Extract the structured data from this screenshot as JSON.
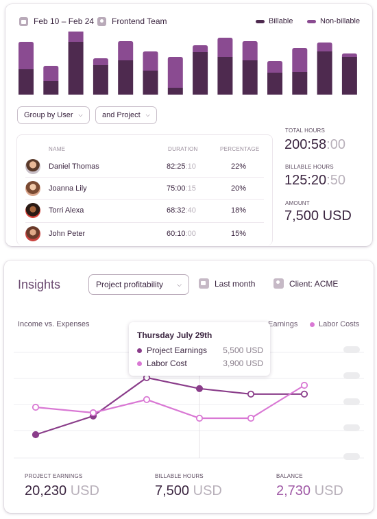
{
  "timesheet": {
    "date_range": "Feb 10 – Feb 24",
    "team": "Frontend Team",
    "legend": [
      {
        "label": "Billable",
        "color": "#4e2a4f"
      },
      {
        "label": "Non-billable",
        "color": "#8a4b91"
      }
    ],
    "group_by": "Group by User",
    "and_by": "and Project",
    "table_headers": {
      "name": "NAME",
      "duration": "DURATION",
      "percentage": "PERCENTAGE"
    },
    "rows": [
      {
        "name": "Daniel Thomas",
        "dur_main": "82:25",
        "dur_sec": ":10",
        "pct": "22%"
      },
      {
        "name": "Joanna Lily",
        "dur_main": "75:00",
        "dur_sec": ":15",
        "pct": "20%"
      },
      {
        "name": "Torri Alexa",
        "dur_main": "68:32",
        "dur_sec": ":40",
        "pct": "18%"
      },
      {
        "name": "John Peter",
        "dur_main": "60:10",
        "dur_sec": ":00",
        "pct": "15%"
      }
    ],
    "stats": {
      "total_label": "TOTAL HOURS",
      "total_main": "200:58",
      "total_sec": ":00",
      "billable_label": "BILLABLE HOURS",
      "billable_main": "125:20",
      "billable_sec": ":50",
      "amount_label": "AMOUNT",
      "amount_value": "7,500 USD"
    }
  },
  "insights": {
    "title": "Insights",
    "report_select": "Project profitability",
    "period": "Last month",
    "client": "Client: ACME",
    "subtitle": "Income vs. Expenses",
    "legend_earnings": "Earnings",
    "legend_labor": "Labor Costs",
    "tooltip": {
      "title": "Thursday July 29th",
      "rows": [
        {
          "label": "Project Earnings",
          "value": "5,500 USD"
        },
        {
          "label": "Labor Cost",
          "value": "3,900 USD"
        }
      ]
    },
    "bottom": {
      "earnings_label": "PROJECT EARNINGS",
      "earnings_num": "20,230",
      "earnings_unit": " USD",
      "billable_label": "BILLABLE HOURS",
      "billable_num": "7,500",
      "billable_unit": " USD",
      "balance_label": "BALANCE",
      "balance_num": "2,730",
      "balance_unit": " USD"
    }
  },
  "chart_data": [
    {
      "type": "bar",
      "stacked": true,
      "series": [
        {
          "name": "Billable",
          "values": [
            37,
            20,
            77,
            43,
            50,
            35,
            10,
            62,
            55,
            50,
            32,
            33,
            63,
            55
          ]
        },
        {
          "name": "Non-billable",
          "values": [
            40,
            22,
            17,
            10,
            28,
            28,
            45,
            10,
            28,
            28,
            17,
            35,
            13,
            5
          ]
        }
      ],
      "colors": [
        "#4e2a4f",
        "#8a4b91"
      ]
    },
    {
      "type": "line",
      "series": [
        {
          "name": "Project Earnings",
          "values": [
            15,
            32,
            67,
            57,
            52,
            52
          ],
          "color": "#8a3d8a"
        },
        {
          "name": "Labor Costs",
          "values": [
            40,
            35,
            47,
            30,
            30,
            60
          ],
          "color": "#d978d4"
        }
      ]
    }
  ]
}
